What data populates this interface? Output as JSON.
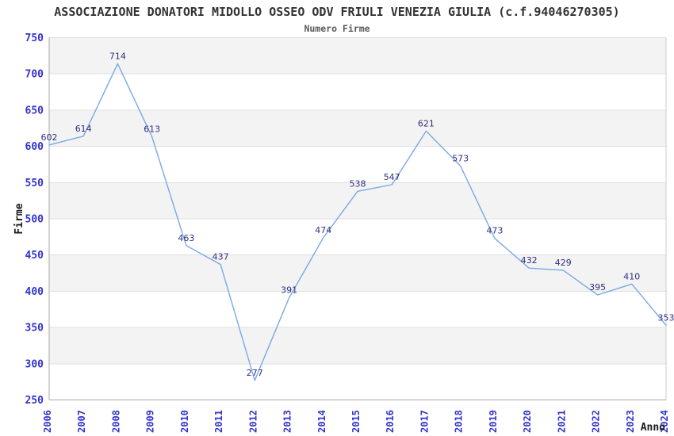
{
  "header": {
    "title": "ASSOCIAZIONE DONATORI MIDOLLO OSSEO ODV FRIULI VENEZIA GIULIA (c.f.94046270305)",
    "subtitle": "Numero Firme"
  },
  "chart_data": {
    "type": "line",
    "title": "ASSOCIAZIONE DONATORI MIDOLLO OSSEO ODV FRIULI VENEZIA GIULIA (c.f.94046270305)",
    "subtitle": "Numero Firme",
    "xlabel": "Anno",
    "ylabel": "Firme",
    "x": [
      "2006",
      "2007",
      "2008",
      "2009",
      "2010",
      "2011",
      "2012",
      "2013",
      "2014",
      "2015",
      "2016",
      "2017",
      "2018",
      "2019",
      "2020",
      "2021",
      "2022",
      "2023",
      "2024"
    ],
    "series": [
      {
        "name": "Numero Firme",
        "values": [
          602,
          614,
          714,
          613,
          463,
          437,
          277,
          391,
          474,
          538,
          547,
          621,
          573,
          473,
          432,
          429,
          395,
          410,
          353
        ]
      }
    ],
    "ylim": [
      250,
      750
    ],
    "ytick_step": 50,
    "yticks": [
      250,
      300,
      350,
      400,
      450,
      500,
      550,
      600,
      650,
      700,
      750
    ],
    "grid": "horizontal-bands-alternating",
    "legend": "none",
    "data_labels_visible": true,
    "colors": {
      "line": "#7aa9e5",
      "tick_label": "#3333cc",
      "data_label": "#30307e",
      "band_fill": "#f3f3f3",
      "gridline": "#e0e0e0",
      "axis_left_bottom": "#a8a8a8",
      "axis_right": "#cccccc",
      "axis_top": "#dcdcdc",
      "title": "#333333",
      "subtitle": "#5a5a5a",
      "axis_title": "#1a1a1a",
      "background": "#ffffff"
    }
  }
}
